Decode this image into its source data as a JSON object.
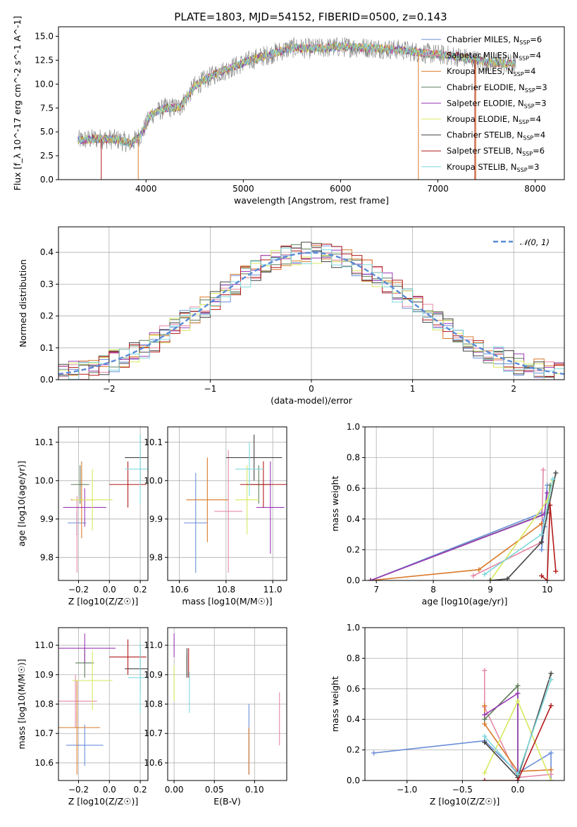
{
  "title": "PLATE=1803, MJD=54152, FIBERID=0500, z=0.143",
  "models": [
    {
      "name": "Chabrier MILES",
      "nssp": "6",
      "color": "#6a8ed8"
    },
    {
      "name": "Salpeter MILES",
      "nssp": "4",
      "color": "#e58aa6"
    },
    {
      "name": "Kroupa MILES",
      "nssp": "4",
      "color": "#d97a2b"
    },
    {
      "name": "Chabrier ELODIE",
      "nssp": "3",
      "color": "#5f7d5a"
    },
    {
      "name": "Salpeter ELODIE",
      "nssp": "3",
      "color": "#9b3ab5"
    },
    {
      "name": "Kroupa ELODIE",
      "nssp": "4",
      "color": "#d8e85e"
    },
    {
      "name": "Chabrier STELIB",
      "nssp": "4",
      "color": "#444444"
    },
    {
      "name": "Salpeter STELIB",
      "nssp": "6",
      "color": "#b3191b"
    },
    {
      "name": "Kroupa STELIB",
      "nssp": "3",
      "color": "#7fd9dc"
    }
  ],
  "chart_data": [
    {
      "id": "spectrum",
      "type": "line",
      "xlabel": "wavelength [Angstrom, rest frame]",
      "ylabel": "Flux [f_λ 10^-17 erg cm^-2 s^-1 A^-1]",
      "xlim": [
        3100,
        8300
      ],
      "ylim": [
        0,
        16
      ],
      "xticks": [
        4000,
        5000,
        6000,
        7000,
        8000
      ],
      "yticks": [
        0.0,
        2.5,
        5.0,
        7.5,
        10.0,
        12.5,
        15.0
      ],
      "data_color": "#808080",
      "continuum": [
        [
          3300,
          4.1
        ],
        [
          3500,
          4.3
        ],
        [
          3700,
          4.2
        ],
        [
          3850,
          3.8
        ],
        [
          3950,
          4.7
        ],
        [
          4050,
          6.8
        ],
        [
          4200,
          7.5
        ],
        [
          4350,
          7.6
        ],
        [
          4500,
          9.8
        ],
        [
          4700,
          11.0
        ],
        [
          4900,
          11.8
        ],
        [
          5100,
          12.6
        ],
        [
          5300,
          13.2
        ],
        [
          5500,
          13.8
        ],
        [
          5700,
          13.7
        ],
        [
          6000,
          13.9
        ],
        [
          6300,
          13.8
        ],
        [
          6600,
          13.6
        ],
        [
          6900,
          13.2
        ],
        [
          7200,
          12.9
        ],
        [
          7500,
          12.3
        ],
        [
          7800,
          12.1
        ]
      ],
      "grid": false,
      "legend": "upper right"
    },
    {
      "id": "residuals",
      "type": "step",
      "xlabel": "(data-model)/error",
      "ylabel": "Normed distribution",
      "xlim": [
        -2.5,
        2.5
      ],
      "ylim": [
        0,
        0.48
      ],
      "xticks": [
        -2,
        -1,
        0,
        1,
        2
      ],
      "yticks": [
        0.0,
        0.1,
        0.2,
        0.3,
        0.4
      ],
      "gaussian_label": "𝒩(0, 1)",
      "gaussian_color": "#5a8ad6",
      "grid": true
    },
    {
      "id": "Z_vs_age",
      "type": "errorbar",
      "xlabel": "Z [log10(Z/Z☉)]",
      "ylabel": "age [log10(age/yr)]",
      "xlim": [
        -0.33,
        0.25
      ],
      "ylim": [
        9.74,
        10.14
      ],
      "xticks": [
        -0.2,
        0.0,
        0.2
      ],
      "yticks": [
        9.8,
        9.9,
        10.0,
        10.1
      ],
      "points": [
        [
          -0.21,
          9.89,
          0.06,
          0.03
        ],
        [
          -0.21,
          9.86,
          0.005,
          0.1
        ],
        [
          -0.18,
          9.95,
          0.07,
          0.1
        ],
        [
          -0.19,
          9.99,
          0.06,
          0.05
        ],
        [
          -0.16,
          9.93,
          0.14,
          0.05
        ],
        [
          -0.11,
          9.95,
          0.13,
          0.08
        ],
        [
          0.2,
          10.06,
          0.1,
          0.06
        ],
        [
          0.12,
          9.99,
          0.12,
          0.06
        ],
        [
          0.2,
          10.03,
          0.1,
          0.09
        ]
      ],
      "grid": true
    },
    {
      "id": "mass_vs_age",
      "type": "errorbar",
      "xlabel": "mass [log10(M/M☉)]",
      "ylabel": "",
      "xlim": [
        10.55,
        11.06
      ],
      "ylim": [
        9.74,
        10.14
      ],
      "xticks": [
        10.6,
        10.8,
        11.0
      ],
      "yticks": [
        9.8,
        9.9,
        10.0,
        10.1
      ],
      "points": [
        [
          10.67,
          9.89,
          0.05,
          0.13
        ],
        [
          10.81,
          9.92,
          0.06,
          0.16
        ],
        [
          10.72,
          9.95,
          0.09,
          0.11
        ],
        [
          10.94,
          9.99,
          0.05,
          0.05
        ],
        [
          10.99,
          9.93,
          0.06,
          0.12
        ],
        [
          10.89,
          9.95,
          0.05,
          0.09
        ],
        [
          10.92,
          10.06,
          0.12,
          0.06
        ],
        [
          10.96,
          9.99,
          0.1,
          0.06
        ],
        [
          10.9,
          10.03,
          0.06,
          0.07
        ]
      ],
      "grid": true
    },
    {
      "id": "age_vs_weight",
      "type": "line",
      "xlabel": "age [log10(age/yr)]",
      "ylabel": "mass weight",
      "xlim": [
        6.8,
        10.3
      ],
      "ylim": [
        0,
        1
      ],
      "xticks": [
        7,
        8,
        9,
        10
      ],
      "yticks": [
        0.0,
        0.2,
        0.4,
        0.6,
        0.8,
        1.0
      ],
      "series": [
        {
          "values": [
            [
              6.9,
              0.0
            ],
            [
              9.9,
              0.44
            ],
            [
              9.95,
              0.35
            ],
            [
              9.9,
              0.2
            ],
            [
              10.0,
              0.62
            ]
          ]
        },
        {
          "values": [
            [
              8.7,
              0.03
            ],
            [
              9.9,
              0.25
            ],
            [
              9.93,
              0.72
            ]
          ]
        },
        {
          "values": [
            [
              6.9,
              0.0
            ],
            [
              8.8,
              0.07
            ],
            [
              9.9,
              0.37
            ]
          ]
        },
        {
          "values": [
            [
              6.9,
              0.0
            ],
            [
              10.0,
              0.44
            ],
            [
              10.05,
              0.62
            ]
          ]
        },
        {
          "values": [
            [
              6.9,
              0.0
            ],
            [
              9.95,
              0.43
            ],
            [
              10.0,
              0.57
            ]
          ]
        },
        {
          "values": [
            [
              9.0,
              0.0
            ],
            [
              10.0,
              0.52
            ],
            [
              10.1,
              0.65
            ]
          ]
        },
        {
          "values": [
            [
              9.0,
              0.0
            ],
            [
              9.3,
              0.01
            ],
            [
              9.9,
              0.25
            ],
            [
              10.15,
              0.7
            ]
          ]
        },
        {
          "values": [
            [
              9.9,
              0.03
            ],
            [
              10.0,
              0.0
            ],
            [
              10.05,
              0.49
            ],
            [
              10.15,
              0.06
            ]
          ]
        },
        {
          "values": [
            [
              8.9,
              0.04
            ],
            [
              9.9,
              0.3
            ],
            [
              10.1,
              0.66
            ]
          ]
        }
      ],
      "grid": true
    },
    {
      "id": "Z_vs_mass",
      "type": "errorbar",
      "xlabel": "Z [log10(Z/Z☉)]",
      "ylabel": "mass [log10(M/M☉)]",
      "xlim": [
        -0.33,
        0.25
      ],
      "ylim": [
        10.54,
        11.06
      ],
      "xticks": [
        -0.2,
        0.0,
        0.2
      ],
      "yticks": [
        10.6,
        10.7,
        10.8,
        10.9,
        11.0
      ],
      "points": [
        [
          -0.16,
          10.66,
          0.12,
          0.07
        ],
        [
          -0.22,
          10.81,
          0.14,
          0.09
        ],
        [
          -0.21,
          10.72,
          0.15,
          0.16
        ],
        [
          -0.16,
          10.94,
          0.06,
          0.05
        ],
        [
          -0.16,
          10.99,
          0.2,
          0.05
        ],
        [
          -0.11,
          10.88,
          0.13,
          0.1
        ],
        [
          0.2,
          10.92,
          0.1,
          0.08
        ],
        [
          0.12,
          10.96,
          0.12,
          0.06
        ],
        [
          0.2,
          10.89,
          0.08,
          0.12
        ]
      ],
      "grid": true
    },
    {
      "id": "EBV_vs_mass",
      "type": "errorbar",
      "xlabel": "E(B-V)",
      "ylabel": "",
      "xlim": [
        -0.008,
        0.14
      ],
      "ylim": [
        10.54,
        11.06
      ],
      "xticks": [
        0.0,
        0.05,
        0.1
      ],
      "yticks": [
        10.6,
        10.7,
        10.8,
        10.9,
        11.0
      ],
      "points": [
        [
          0.093,
          10.68,
          0.0,
          0.12
        ],
        [
          0.131,
          10.75,
          0.0,
          0.09
        ],
        [
          0.093,
          10.64,
          0.0,
          0.08
        ],
        [
          0.016,
          10.93,
          0.0,
          0.04
        ],
        [
          0.0,
          11.0,
          0.0,
          0.04
        ],
        [
          0.0,
          10.87,
          0.0,
          0.06
        ],
        [
          0.016,
          10.94,
          0.0,
          0.05
        ],
        [
          0.018,
          10.94,
          0.0,
          0.05
        ],
        [
          0.019,
          10.84,
          0.0,
          0.07
        ]
      ],
      "grid": true
    },
    {
      "id": "Z_vs_weight",
      "type": "line",
      "xlabel": "Z [log10(Z/Z☉)]",
      "ylabel": "mass weight",
      "xlim": [
        -1.38,
        0.42
      ],
      "ylim": [
        0,
        1
      ],
      "xticks": [
        -1.0,
        -0.5,
        0.0
      ],
      "yticks": [
        0.0,
        0.2,
        0.4,
        0.6,
        0.8,
        1.0
      ],
      "series": [
        {
          "values": [
            [
              -1.3,
              0.18
            ],
            [
              -0.3,
              0.26
            ],
            [
              0.0,
              0.05
            ],
            [
              0.3,
              0.18
            ],
            [
              0.3,
              0.0
            ]
          ]
        },
        {
          "values": [
            [
              -0.3,
              0.72
            ],
            [
              -0.3,
              0.48
            ],
            [
              0.0,
              0.02
            ],
            [
              0.3,
              0.04
            ]
          ]
        },
        {
          "values": [
            [
              -0.3,
              0.49
            ],
            [
              -0.3,
              0.37
            ],
            [
              0.0,
              0.06
            ],
            [
              0.3,
              0.07
            ]
          ]
        },
        {
          "values": [
            [
              -0.3,
              0.4
            ],
            [
              0.0,
              0.62
            ],
            [
              0.0,
              0.02
            ]
          ]
        },
        {
          "values": [
            [
              -0.3,
              0.43
            ],
            [
              0.0,
              0.57
            ],
            [
              0.0,
              0.0
            ]
          ]
        },
        {
          "values": [
            [
              -0.3,
              0.05
            ],
            [
              0.0,
              0.52
            ],
            [
              0.3,
              0.0
            ]
          ]
        },
        {
          "values": [
            [
              -0.3,
              0.25
            ],
            [
              0.0,
              0.02
            ],
            [
              0.3,
              0.7
            ]
          ]
        },
        {
          "values": [
            [
              -0.3,
              0.0
            ],
            [
              0.0,
              0.0
            ],
            [
              0.3,
              0.49
            ]
          ]
        },
        {
          "values": [
            [
              -0.3,
              0.29
            ],
            [
              0.0,
              0.04
            ],
            [
              0.3,
              0.66
            ]
          ]
        }
      ],
      "grid": true
    }
  ]
}
